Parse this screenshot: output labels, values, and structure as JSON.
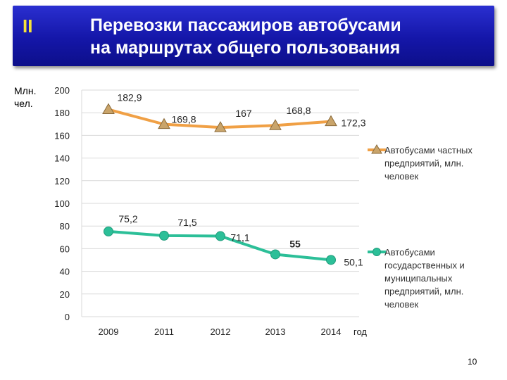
{
  "slide": {
    "section": "II",
    "title_line1": "Перевозки пассажиров автобусами",
    "title_line2": "на маршрутах общего пользования",
    "page_number": "10"
  },
  "chart_data": {
    "type": "line",
    "ylabel_line1": "Млн.",
    "ylabel_line2": "чел.",
    "xlabel": "год",
    "categories": [
      "2009",
      "2011",
      "2012",
      "2013",
      "2014"
    ],
    "ylim": [
      0,
      200
    ],
    "yticks": [
      0,
      20,
      40,
      60,
      80,
      100,
      120,
      140,
      160,
      180,
      200
    ],
    "grid": "horizontal",
    "legend_position": "right",
    "series": [
      {
        "name_lines": [
          "Автобусами частных",
          "предприятий, млн.",
          "человек"
        ],
        "values": [
          182.9,
          169.8,
          167,
          168.8,
          172.3
        ],
        "labels": [
          "182,9",
          "169,8",
          "167",
          "168,8",
          "172,3"
        ],
        "color": "#f0a045",
        "marker": "triangle",
        "marker_color": "#c9a46a"
      },
      {
        "name_lines": [
          "Автобусами",
          "государственных и",
          "муниципальных",
          "предприятий, млн.",
          "человек"
        ],
        "values": [
          75.2,
          71.5,
          71.1,
          55,
          50.1
        ],
        "labels": [
          "75,2",
          "71,5",
          "71,1",
          "55",
          "50,1"
        ],
        "color": "#2cbf98",
        "marker": "circle",
        "marker_color": "#2cbf98"
      }
    ]
  }
}
